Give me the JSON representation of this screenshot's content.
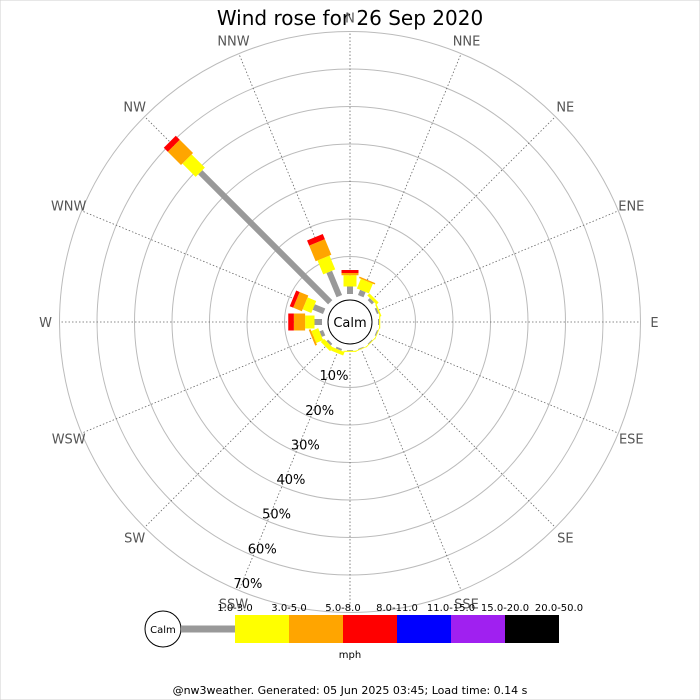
{
  "chart_data": {
    "type": "wind-rose",
    "title": "Wind rose for 26 Sep 2020",
    "directions": [
      "N",
      "NNE",
      "NE",
      "ENE",
      "E",
      "ESE",
      "SE",
      "SSE",
      "S",
      "SSW",
      "SW",
      "WSW",
      "W",
      "WNW",
      "NW",
      "NNW"
    ],
    "ring_labels": [
      "10%",
      "20%",
      "30%",
      "40%",
      "50%",
      "60%",
      "70%"
    ],
    "rmax_percent": 70,
    "calm_label": "Calm",
    "speed_bins": [
      {
        "label": "1.0-3.0",
        "color": "#999999"
      },
      {
        "label": "3.0-5.0",
        "color": "#ffff00"
      },
      {
        "label": "5.0-8.0",
        "color": "#ffa500"
      },
      {
        "label": "8.0-11.0",
        "color": "#ff0000"
      },
      {
        "label": "11.0-15.0",
        "color": "#0000ff"
      },
      {
        "label": "15.0-20.0",
        "color": "#a020f0"
      },
      {
        "label": "20.0-50.0",
        "color": "#000000"
      }
    ],
    "units": "mph",
    "series": [
      {
        "direction": "N",
        "values": [
          2.0,
          3.0,
          0.6,
          0.8,
          0,
          0,
          0
        ]
      },
      {
        "direction": "NNE",
        "values": [
          1.5,
          2.8,
          0.4,
          0,
          0,
          0,
          0
        ]
      },
      {
        "direction": "NE",
        "values": [
          0.8,
          0.8,
          0,
          0,
          0,
          0,
          0
        ]
      },
      {
        "direction": "ENE",
        "values": [
          0.5,
          0.4,
          0,
          0,
          0,
          0,
          0
        ]
      },
      {
        "direction": "E",
        "values": [
          0.3,
          0.3,
          0,
          0,
          0,
          0,
          0
        ]
      },
      {
        "direction": "ESE",
        "values": [
          0.3,
          0.2,
          0,
          0,
          0,
          0,
          0
        ]
      },
      {
        "direction": "SE",
        "values": [
          0.2,
          0.2,
          0,
          0,
          0,
          0,
          0
        ]
      },
      {
        "direction": "SSE",
        "values": [
          0.2,
          0.2,
          0,
          0,
          0,
          0,
          0
        ]
      },
      {
        "direction": "S",
        "values": [
          0.2,
          0.3,
          0,
          0,
          0,
          0,
          0
        ]
      },
      {
        "direction": "SSW",
        "values": [
          0.5,
          1.0,
          0,
          0,
          0,
          0,
          0
        ]
      },
      {
        "direction": "SW",
        "values": [
          0.6,
          1.2,
          0,
          0,
          0,
          0,
          0
        ]
      },
      {
        "direction": "WSW",
        "values": [
          1.0,
          2.0,
          0.5,
          0,
          0,
          0,
          0
        ]
      },
      {
        "direction": "W",
        "values": [
          2.0,
          2.5,
          3.0,
          1.5,
          0,
          0,
          0
        ]
      },
      {
        "direction": "WNW",
        "values": [
          3.0,
          2.5,
          2.5,
          1.0,
          0,
          0,
          0
        ]
      },
      {
        "direction": "NW",
        "values": [
          49.0,
          5.0,
          5.0,
          1.5,
          0,
          0,
          0
        ]
      },
      {
        "direction": "NNW",
        "values": [
          7.0,
          4.0,
          4.5,
          1.5,
          0,
          0,
          0
        ]
      }
    ]
  },
  "footer": "@nw3weather. Generated: 05 Jun 2025 03:45; Load time: 0.14 s"
}
